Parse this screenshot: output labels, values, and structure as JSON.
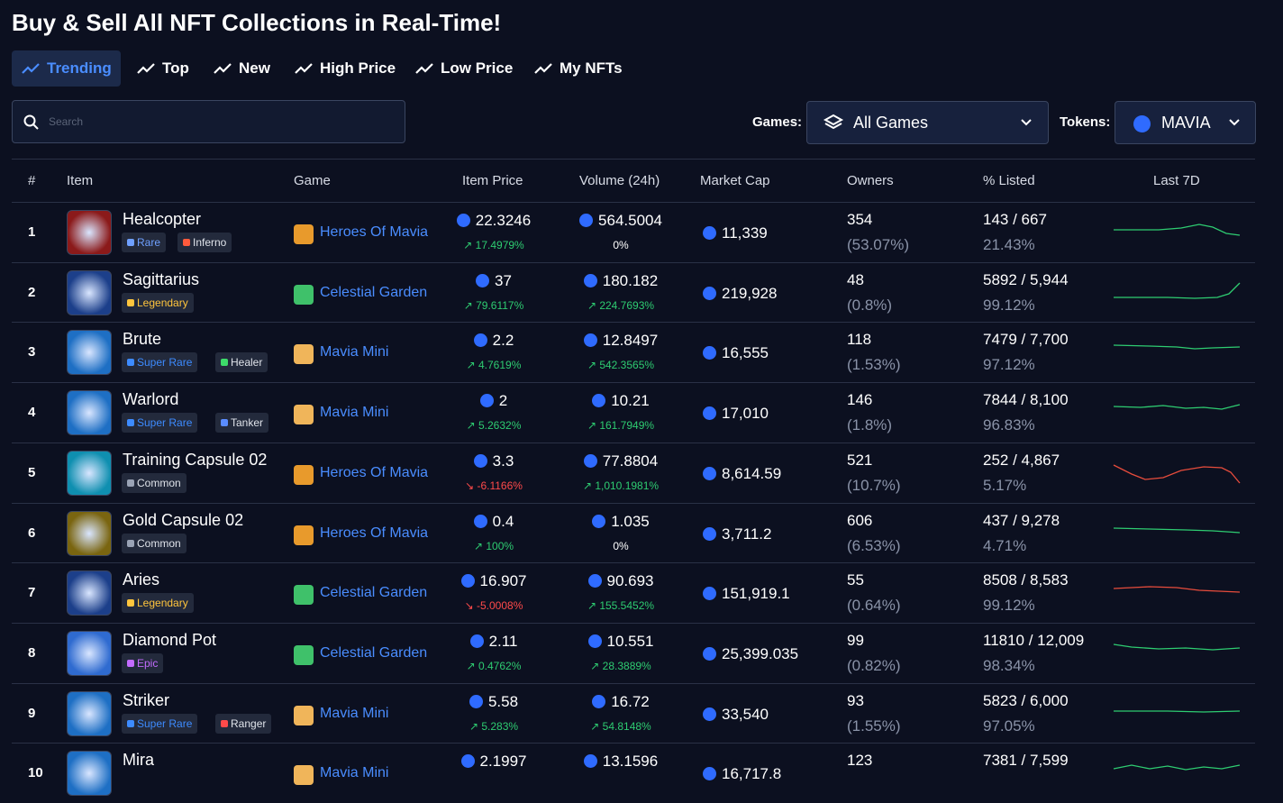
{
  "header": {
    "title": "Buy & Sell All NFT Collections in Real-Time!"
  },
  "tabs": [
    "Trending",
    "Top",
    "New",
    "High Price",
    "Low Price",
    "My NFTs"
  ],
  "filters": {
    "search_placeholder": "Search",
    "games_label": "Games:",
    "games_value": "All Games",
    "tokens_label": "Tokens:",
    "tokens_value": "MAVIA"
  },
  "table": {
    "columns": [
      "#",
      "Item",
      "Game",
      "Item Price",
      "Volume (24h)",
      "Market Cap",
      "Owners",
      "% Listed",
      "Last 7D"
    ],
    "rows": [
      {
        "rank": "1",
        "item": "Healcopter",
        "tags": [
          {
            "label": "Rare",
            "color": "#6fa0ff"
          },
          {
            "label": "Inferno",
            "color": "#ff5a3c"
          }
        ],
        "game": "Heroes Of Mavia",
        "price": "22.3246",
        "price_change": "17.4979%",
        "price_dir": "up",
        "volume": "564.5004",
        "volume_change": "0%",
        "volume_dir": "flat",
        "market_cap": "11,339",
        "owners": "354",
        "owners_pct": "(53.07%)",
        "listed": "143 / 667",
        "listed_pct": "21.43%"
      },
      {
        "rank": "2",
        "item": "Sagittarius",
        "tags": [
          {
            "label": "Legendary",
            "color": "#ffc53d"
          }
        ],
        "game": "Celestial Garden",
        "price": "37",
        "price_change": "79.6117%",
        "price_dir": "up",
        "volume": "180.182",
        "volume_change": "224.7693%",
        "volume_dir": "up",
        "market_cap": "219,928",
        "owners": "48",
        "owners_pct": "(0.8%)",
        "listed": "5892 / 5,944",
        "listed_pct": "99.12%"
      },
      {
        "rank": "3",
        "item": "Brute",
        "tags": [
          {
            "label": "Super Rare",
            "color": "#3d8bff"
          },
          {
            "label": "Healer",
            "color": "#3ddc6a"
          }
        ],
        "game": "Mavia Mini",
        "price": "2.2",
        "price_change": "4.7619%",
        "price_dir": "up",
        "volume": "12.8497",
        "volume_change": "542.3565%",
        "volume_dir": "up",
        "market_cap": "16,555",
        "owners": "118",
        "owners_pct": "(1.53%)",
        "listed": "7479 / 7,700",
        "listed_pct": "97.12%"
      },
      {
        "rank": "4",
        "item": "Warlord",
        "tags": [
          {
            "label": "Super Rare",
            "color": "#3d8bff"
          },
          {
            "label": "Tanker",
            "color": "#5a8cff"
          }
        ],
        "game": "Mavia Mini",
        "price": "2",
        "price_change": "5.2632%",
        "price_dir": "up",
        "volume": "10.21",
        "volume_change": "161.7949%",
        "volume_dir": "up",
        "market_cap": "17,010",
        "owners": "146",
        "owners_pct": "(1.8%)",
        "listed": "7844 / 8,100",
        "listed_pct": "96.83%"
      },
      {
        "rank": "5",
        "item": "Training Capsule 02",
        "tags": [
          {
            "label": "Common",
            "color": "#9aa3b5"
          }
        ],
        "game": "Heroes Of Mavia",
        "price": "3.3",
        "price_change": "-6.1166%",
        "price_dir": "down",
        "volume": "77.8804",
        "volume_change": "1,010.1981%",
        "volume_dir": "up",
        "market_cap": "8,614.59",
        "owners": "521",
        "owners_pct": "(10.7%)",
        "listed": "252 / 4,867",
        "listed_pct": "5.17%"
      },
      {
        "rank": "6",
        "item": "Gold Capsule 02",
        "tags": [
          {
            "label": "Common",
            "color": "#9aa3b5"
          }
        ],
        "game": "Heroes Of Mavia",
        "price": "0.4",
        "price_change": "100%",
        "price_dir": "up",
        "volume": "1.035",
        "volume_change": "0%",
        "volume_dir": "flat",
        "market_cap": "3,711.2",
        "owners": "606",
        "owners_pct": "(6.53%)",
        "listed": "437 / 9,278",
        "listed_pct": "4.71%"
      },
      {
        "rank": "7",
        "item": "Aries",
        "tags": [
          {
            "label": "Legendary",
            "color": "#ffc53d"
          }
        ],
        "game": "Celestial Garden",
        "price": "16.907",
        "price_change": "-5.0008%",
        "price_dir": "down",
        "volume": "90.693",
        "volume_change": "155.5452%",
        "volume_dir": "up",
        "market_cap": "151,919.1",
        "owners": "55",
        "owners_pct": "(0.64%)",
        "listed": "8508 / 8,583",
        "listed_pct": "99.12%"
      },
      {
        "rank": "8",
        "item": "Diamond Pot",
        "tags": [
          {
            "label": "Epic",
            "color": "#c36bff"
          }
        ],
        "game": "Celestial Garden",
        "price": "2.11",
        "price_change": "0.4762%",
        "price_dir": "up",
        "volume": "10.551",
        "volume_change": "28.3889%",
        "volume_dir": "up",
        "market_cap": "25,399.035",
        "owners": "99",
        "owners_pct": "(0.82%)",
        "listed": "11810 / 12,009",
        "listed_pct": "98.34%"
      },
      {
        "rank": "9",
        "item": "Striker",
        "tags": [
          {
            "label": "Super Rare",
            "color": "#3d8bff"
          },
          {
            "label": "Ranger",
            "color": "#ff4a4a"
          }
        ],
        "game": "Mavia Mini",
        "price": "5.58",
        "price_change": "5.283%",
        "price_dir": "up",
        "volume": "16.72",
        "volume_change": "54.8148%",
        "volume_dir": "up",
        "market_cap": "33,540",
        "owners": "93",
        "owners_pct": "(1.55%)",
        "listed": "5823 / 6,000",
        "listed_pct": "97.05%"
      },
      {
        "rank": "10",
        "item": "Mira",
        "tags": [],
        "game": "Mavia Mini",
        "price": "2.1997",
        "price_change": "",
        "price_dir": "up",
        "volume": "13.1596",
        "volume_change": "",
        "volume_dir": "up",
        "market_cap": "16,717.8",
        "owners": "123",
        "owners_pct": "",
        "listed": "7381 / 7,599",
        "listed_pct": ""
      }
    ]
  }
}
